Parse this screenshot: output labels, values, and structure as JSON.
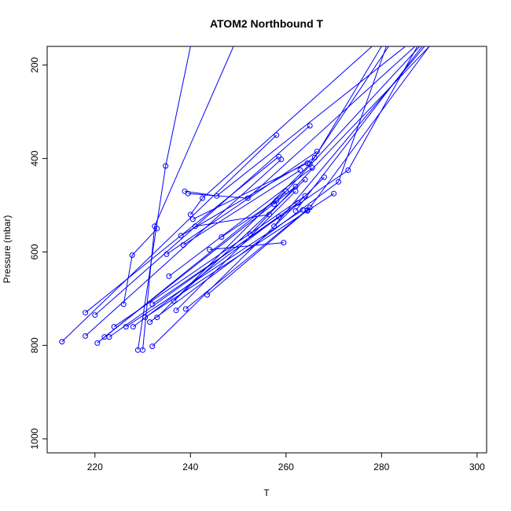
{
  "chart_data": {
    "type": "line",
    "title": "ATOM2 Northbound T",
    "xlabel": "T",
    "ylabel": "Pressure (mbar)",
    "xlim": [
      210,
      302
    ],
    "ylim": [
      1030,
      160
    ],
    "y_reversed": true,
    "x_ticks": [
      220,
      240,
      260,
      280,
      300
    ],
    "y_ticks": [
      200,
      400,
      600,
      800,
      1000
    ],
    "x_tick_labels": [
      "220",
      "240",
      "260",
      "280",
      "300"
    ],
    "y_tick_labels": [
      "200",
      "400",
      "600",
      "800",
      "1000"
    ],
    "grid": false,
    "legend": "none",
    "color": "#0000ff",
    "series": [
      {
        "x": [
          213.1,
          258.0
        ],
        "y": [
          792,
          350
        ]
      },
      {
        "x": [
          218.0,
          258.5
        ],
        "y": [
          730,
          396
        ]
      },
      {
        "x": [
          218.0,
          259.0
        ],
        "y": [
          780,
          402
        ]
      },
      {
        "x": [
          220.0,
          265.0
        ],
        "y": [
          735,
          330
        ]
      },
      {
        "x": [
          220.5,
          260.0
        ],
        "y": [
          795,
          470
        ]
      },
      {
        "x": [
          222.0,
          262.0
        ],
        "y": [
          782,
          460
        ]
      },
      {
        "x": [
          223.0,
          262.5
        ],
        "y": [
          782,
          495
        ]
      },
      {
        "x": [
          224.0,
          264.0
        ],
        "y": [
          760,
          480
        ]
      },
      {
        "x": [
          226.0,
          227.8,
          233.0
        ],
        "y": [
          712,
          607,
          550
        ]
      },
      {
        "x": [
          226.5,
          263.5
        ],
        "y": [
          760,
          510
        ]
      },
      {
        "x": [
          228.0,
          258.5
        ],
        "y": [
          760,
          525
        ]
      },
      {
        "x": [
          229.0,
          234.8,
          240.0
        ],
        "y": [
          810,
          416,
          160
        ]
      },
      {
        "x": [
          230.0,
          232.5,
          249.0
        ],
        "y": [
          810,
          545,
          160
        ]
      },
      {
        "x": [
          230.5,
          270.0
        ],
        "y": [
          740,
          475
        ]
      },
      {
        "x": [
          231.5,
          271.0,
          281.0
        ],
        "y": [
          750,
          450,
          160
        ]
      },
      {
        "x": [
          232.0,
          273.0,
          287.5
        ],
        "y": [
          712,
          425,
          160
        ]
      },
      {
        "x": [
          232.0,
          268.0
        ],
        "y": [
          802,
          440
        ]
      },
      {
        "x": [
          233.0,
          265.0,
          281.5
        ],
        "y": [
          740,
          412,
          160
        ]
      },
      {
        "x": [
          235.0,
          266.5
        ],
        "y": [
          605,
          385
        ]
      },
      {
        "x": [
          235.5,
          265.5
        ],
        "y": [
          652,
          420
        ]
      },
      {
        "x": [
          236.5,
          264.0
        ],
        "y": [
          705,
          445
        ]
      },
      {
        "x": [
          237.0,
          262.0
        ],
        "y": [
          725,
          470
        ]
      },
      {
        "x": [
          238.0,
          266.0,
          280.0
        ],
        "y": [
          565,
          398,
          160
        ]
      },
      {
        "x": [
          238.5,
          263.0
        ],
        "y": [
          585,
          425
        ]
      },
      {
        "x": [
          238.8,
          245.5,
          285.0
        ],
        "y": [
          470,
          480,
          160
        ]
      },
      {
        "x": [
          239.5,
          252.0,
          287.0
        ],
        "y": [
          475,
          485,
          160
        ]
      },
      {
        "x": [
          240.0,
          242.5,
          278.0
        ],
        "y": [
          520,
          485,
          160
        ]
      },
      {
        "x": [
          240.5,
          264.5
        ],
        "y": [
          530,
          410
        ]
      },
      {
        "x": [
          241.0,
          256.5
        ],
        "y": [
          545,
          520
        ]
      },
      {
        "x": [
          239.0,
          265.0
        ],
        "y": [
          722,
          505
        ]
      },
      {
        "x": [
          243.5,
          264.5
        ],
        "y": [
          692,
          510
        ]
      },
      {
        "x": [
          244.0,
          259.5
        ],
        "y": [
          595,
          580
        ]
      },
      {
        "x": [
          246.5,
          258.0
        ],
        "y": [
          568,
          490
        ]
      },
      {
        "x": [
          252.5,
          290.0
        ],
        "y": [
          562,
          160
        ]
      },
      {
        "x": [
          257.5,
          289.0
        ],
        "y": [
          545,
          160
        ]
      },
      {
        "x": [
          257.5,
          288.0
        ],
        "y": [
          498,
          160
        ]
      },
      {
        "x": [
          262.0,
          288.5
        ],
        "y": [
          512,
          160
        ]
      },
      {
        "x": [
          264.5,
          290.0
        ],
        "y": [
          512,
          160
        ]
      }
    ]
  }
}
